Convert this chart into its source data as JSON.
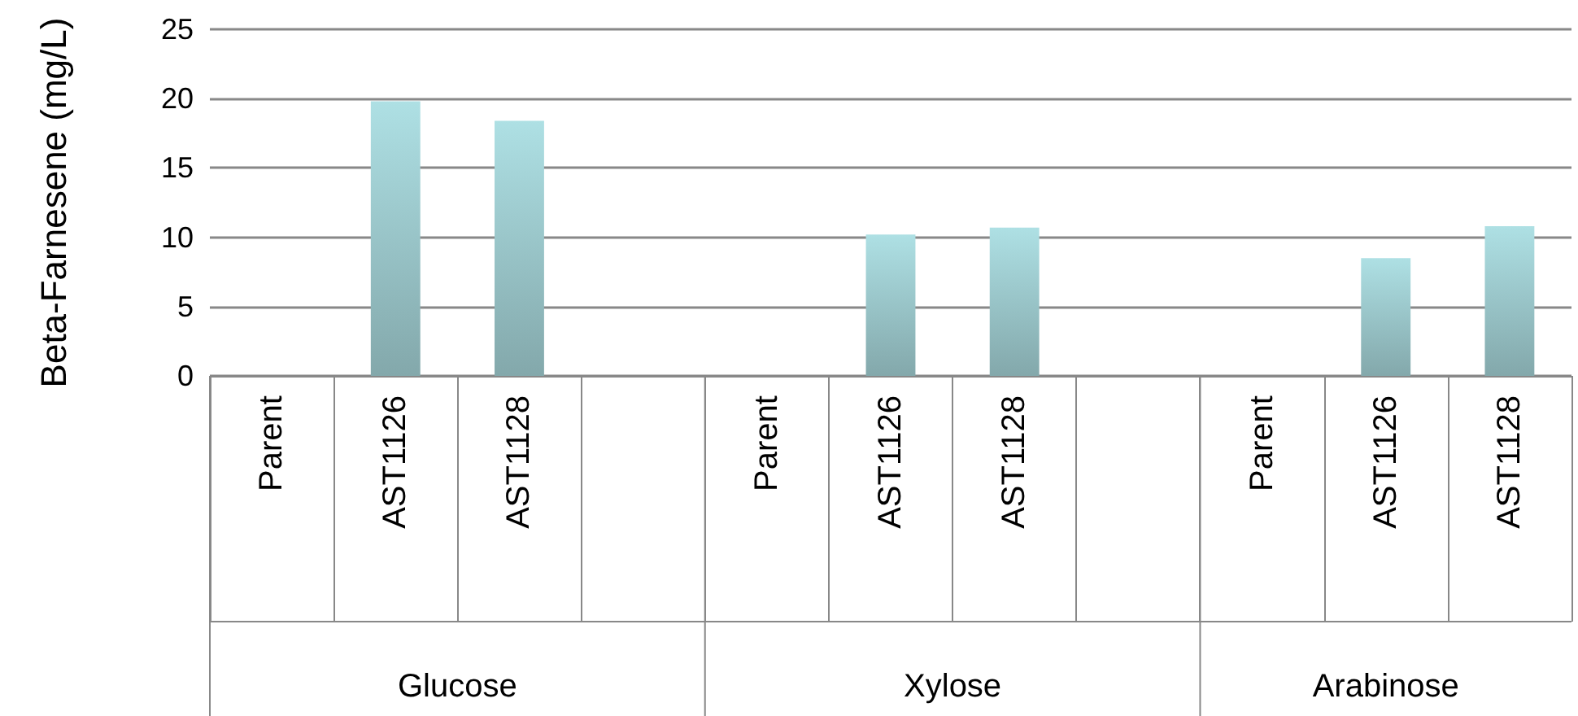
{
  "chart_data": {
    "type": "bar",
    "ylabel": "Beta-Farnesene (mg/L)",
    "categories": [
      "Parent",
      "AST1126",
      "AST1128",
      null,
      "Parent",
      "AST1126",
      "AST1128",
      null,
      "Parent",
      "AST1126",
      "AST1128"
    ],
    "values": [
      0,
      19.8,
      18.4,
      null,
      0,
      10.2,
      10.7,
      null,
      0,
      8.5,
      10.8
    ],
    "color": "#aee0e4",
    "ylim": [
      0,
      25
    ],
    "yticks": [
      0,
      5,
      10,
      15,
      20,
      25
    ],
    "grid": "y",
    "annotations": [
      "Glucose",
      "Xylose",
      "Arabinose"
    ]
  }
}
